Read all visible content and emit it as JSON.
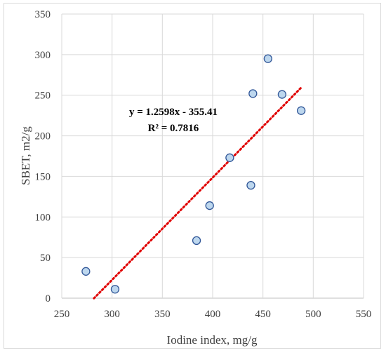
{
  "chart_data": {
    "type": "scatter",
    "xlabel": "Iodine index, mg/g",
    "ylabel": "SBET, m2/g",
    "xlim": [
      250,
      550
    ],
    "ylim": [
      0,
      350
    ],
    "x_ticks": [
      250,
      300,
      350,
      400,
      450,
      500,
      550
    ],
    "y_ticks": [
      0,
      50,
      100,
      150,
      200,
      250,
      300,
      350
    ],
    "x_tick_labels": [
      "250",
      "300",
      "350",
      "400",
      "450",
      "500",
      "550"
    ],
    "y_tick_labels": [
      "0",
      "50",
      "100",
      "150",
      "200",
      "250",
      "300",
      "350"
    ],
    "grid": true,
    "legend": "none",
    "points": [
      {
        "x": 274,
        "y": 33
      },
      {
        "x": 303,
        "y": 11
      },
      {
        "x": 384,
        "y": 71
      },
      {
        "x": 397,
        "y": 114
      },
      {
        "x": 417,
        "y": 173
      },
      {
        "x": 438,
        "y": 139
      },
      {
        "x": 440,
        "y": 252
      },
      {
        "x": 455,
        "y": 295
      },
      {
        "x": 469,
        "y": 251
      },
      {
        "x": 488,
        "y": 231
      }
    ],
    "trendline": {
      "type": "linear",
      "slope": 1.2598,
      "intercept": -355.41,
      "x_range": [
        282,
        488
      ],
      "equation": "y = 1.2598x - 355.41",
      "r_squared": "R² = 0.7816"
    },
    "colors": {
      "marker_fill": "#bdd7ee",
      "marker_stroke": "#2f5597",
      "trendline": "#e00000",
      "grid": "#d9d9d9",
      "axis": "#bfbfbf"
    }
  }
}
